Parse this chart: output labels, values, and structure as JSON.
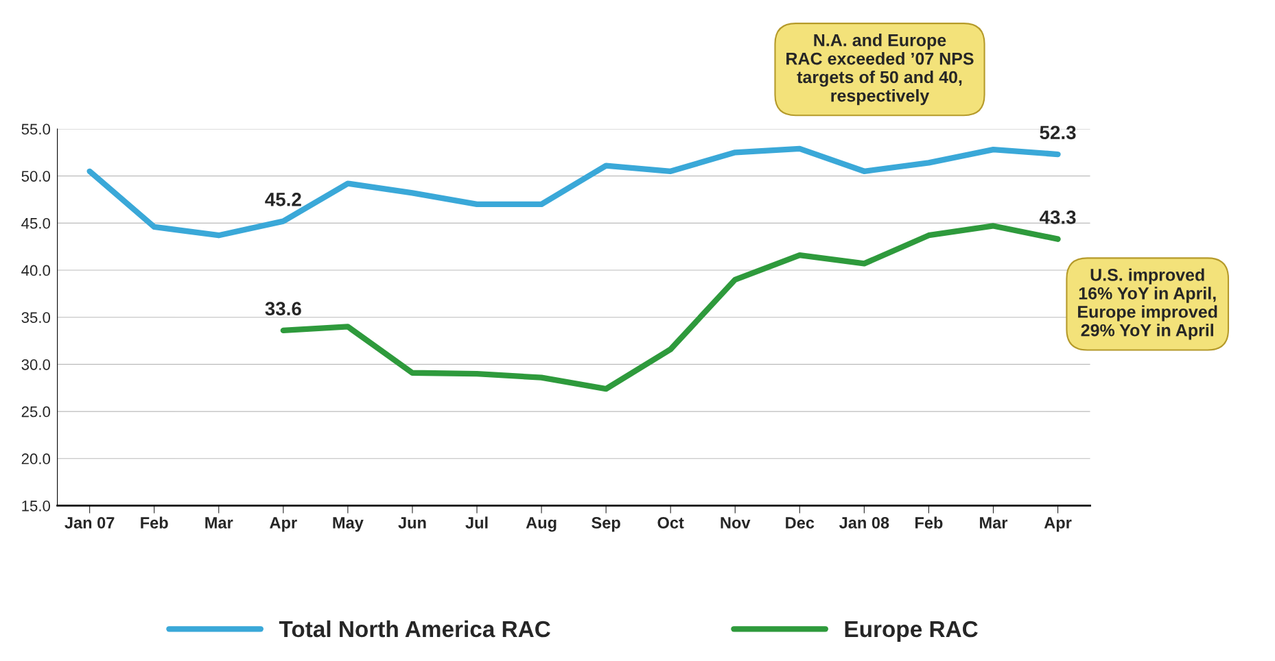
{
  "chart_data": {
    "type": "line",
    "categories": [
      "Jan 07",
      "Feb",
      "Mar",
      "Apr",
      "May",
      "Jun",
      "Jul",
      "Aug",
      "Sep",
      "Oct",
      "Nov",
      "Dec",
      "Jan 08",
      "Feb",
      "Mar",
      "Apr"
    ],
    "series": [
      {
        "name": "Total North America RAC",
        "color": "#3aa8d8",
        "values": [
          50.5,
          44.6,
          43.7,
          45.2,
          49.2,
          48.2,
          47.0,
          47.0,
          51.1,
          50.5,
          52.5,
          52.9,
          50.5,
          51.4,
          52.8,
          52.3
        ],
        "value_labels": [
          null,
          null,
          null,
          "45.2",
          null,
          null,
          null,
          null,
          null,
          null,
          null,
          null,
          null,
          null,
          null,
          "52.3"
        ]
      },
      {
        "name": "Europe RAC",
        "color": "#2e9a3c",
        "values": [
          null,
          null,
          null,
          33.6,
          34.0,
          29.1,
          29.0,
          28.6,
          27.4,
          31.6,
          39.0,
          41.6,
          40.7,
          43.7,
          44.7,
          43.3
        ],
        "value_labels": [
          null,
          null,
          null,
          "33.6",
          null,
          null,
          null,
          null,
          null,
          null,
          null,
          null,
          null,
          null,
          null,
          "43.3"
        ]
      }
    ],
    "ylim": [
      15,
      55
    ],
    "yticks": [
      {
        "value": 15,
        "label": "15.0"
      },
      {
        "value": 20,
        "label": "20.0"
      },
      {
        "value": 25,
        "label": "25.0"
      },
      {
        "value": 30,
        "label": "30.0"
      },
      {
        "value": 35,
        "label": "35.0"
      },
      {
        "value": 40,
        "label": "40.0"
      },
      {
        "value": 45,
        "label": "45.0"
      },
      {
        "value": 50,
        "label": "50.0"
      },
      {
        "value": 55,
        "label": "55.0"
      }
    ],
    "grid": "y",
    "legend": "bottom",
    "marker": "none",
    "line_style": "solid",
    "annotations": [
      "N.A. and Europe\nRAC exceeded ’07 NPS\ntargets of 50 and 40,\nrespectively",
      "U.S. improved\n16% YoY in April,\nEurope improved\n29% YoY in April"
    ]
  }
}
